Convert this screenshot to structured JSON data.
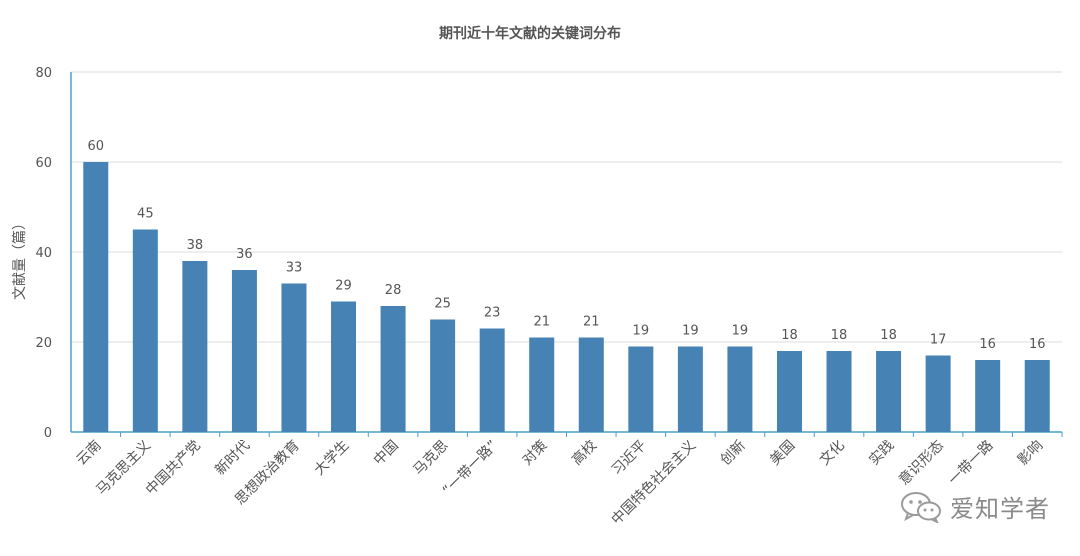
{
  "chart_data": {
    "type": "bar",
    "title": "期刊近十年文献的关键词分布",
    "xlabel": "",
    "ylabel": "文献量（篇）",
    "ylim": [
      0,
      80
    ],
    "yticks": [
      0,
      20,
      40,
      60,
      80
    ],
    "grid": true,
    "categories": [
      "云南",
      "马克思主义",
      "中国共产党",
      "新时代",
      "思想政治教育",
      "大学生",
      "中国",
      "马克思",
      "“一带一路”",
      "对策",
      "高校",
      "习近平",
      "中国特色社会主义",
      "创新",
      "美国",
      "文化",
      "实践",
      "意识形态",
      "一带一路",
      "影响"
    ],
    "values": [
      60,
      45,
      38,
      36,
      33,
      29,
      28,
      25,
      23,
      21,
      21,
      19,
      19,
      19,
      18,
      18,
      18,
      17,
      16,
      16
    ],
    "colors": {
      "bar": "#4682b4",
      "axis": "#4aa3c8",
      "grid": "#dddddd",
      "text": "#555555"
    }
  },
  "watermark": {
    "text": "爱知学者",
    "icon": "wechat-icon"
  }
}
